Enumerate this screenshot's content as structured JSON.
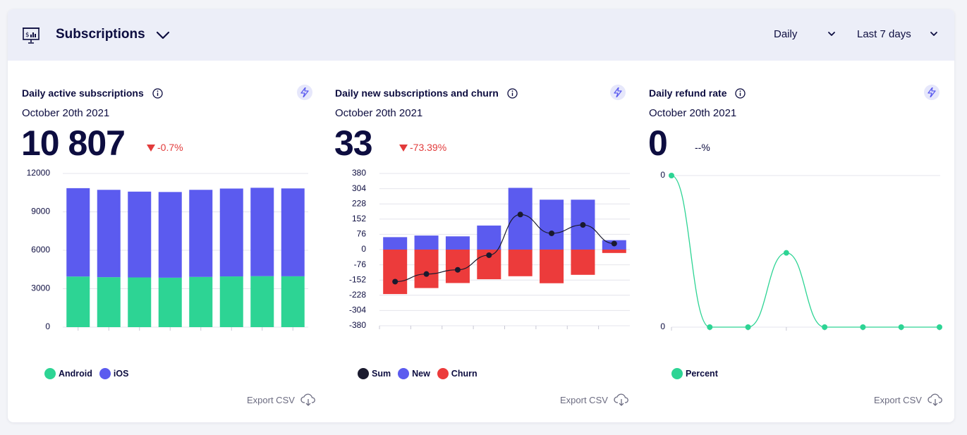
{
  "header": {
    "title": "Subscriptions",
    "period_select": "Daily",
    "range_select": "Last 7 days"
  },
  "colors": {
    "android": "#2dd494",
    "ios": "#5b5bef",
    "sum": "#1a1a2e",
    "new": "#5b5bef",
    "churn": "#ec3b3b",
    "percent": "#2dd494",
    "negative": "#e23b3b"
  },
  "cards": [
    {
      "title": "Daily active subscriptions",
      "date": "October 20th 2021",
      "value": "10 807",
      "delta": "-0.7%",
      "export_label": "Export CSV"
    },
    {
      "title": "Daily new subscriptions and churn",
      "date": "October 20th 2021",
      "value": "33",
      "delta": "-73.39%",
      "export_label": "Export CSV"
    },
    {
      "title": "Daily refund rate",
      "date": "October 20th 2021",
      "value": "0",
      "delta": "--%",
      "export_label": "Export CSV"
    }
  ],
  "chart_data": [
    {
      "type": "bar",
      "stacked": true,
      "yticks": [
        "12000",
        "9000",
        "6000",
        "3000",
        "0"
      ],
      "ylim": [
        0,
        12000
      ],
      "grid": true,
      "legend_position": "bottom-left",
      "series": [
        {
          "name": "Android",
          "values": [
            3950,
            3900,
            3880,
            3860,
            3920,
            3960,
            3980,
            3970
          ]
        },
        {
          "name": "iOS",
          "values": [
            6900,
            6820,
            6700,
            6690,
            6800,
            6860,
            6900,
            6860
          ]
        }
      ],
      "legend": [
        "Android",
        "iOS"
      ]
    },
    {
      "type": "bar",
      "stacked": true,
      "yticks": [
        "380",
        "304",
        "228",
        "152",
        "76",
        "0",
        "-76",
        "-152",
        "-228",
        "-304",
        "-380"
      ],
      "ylim": [
        -380,
        380
      ],
      "grid": true,
      "legend_position": "bottom-left",
      "series": [
        {
          "name": "Sum",
          "type": "line",
          "values": [
            -160,
            -122,
            -101,
            -28,
            175,
            81,
            123,
            30
          ]
        },
        {
          "name": "New",
          "values": [
            62,
            70,
            66,
            120,
            308,
            249,
            249,
            47
          ]
        },
        {
          "name": "Churn",
          "values": [
            -222,
            -192,
            -167,
            -148,
            -133,
            -168,
            -126,
            -17
          ]
        }
      ],
      "legend": [
        "Sum",
        "New",
        "Churn"
      ]
    },
    {
      "type": "line",
      "yticks": [
        "0",
        "0"
      ],
      "grid": true,
      "legend_position": "bottom-left",
      "series": [
        {
          "name": "Percent",
          "values": [
            100,
            0,
            0,
            49,
            0,
            0,
            0,
            0
          ]
        }
      ],
      "legend": [
        "Percent"
      ]
    }
  ]
}
